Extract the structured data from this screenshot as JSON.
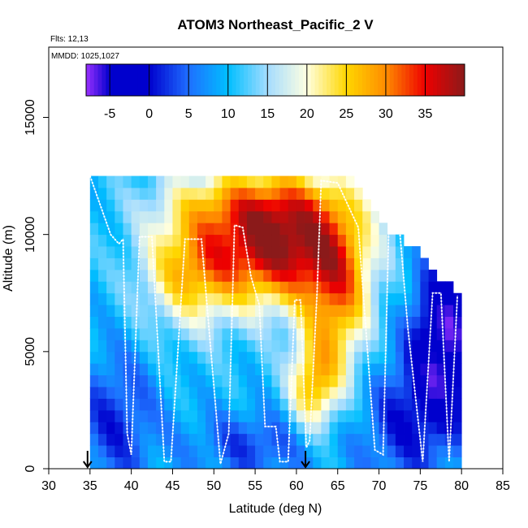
{
  "chart_data": {
    "type": "heatmap",
    "title": "ATOM3 Northeast_Pacific_2 V",
    "annotations": [
      "Flts: 12,13",
      "MMDD: 1025,1027"
    ],
    "xlabel": "Latitude (deg N)",
    "ylabel": "Altitude (m)",
    "xlim": [
      30,
      85
    ],
    "ylim": [
      0,
      18000
    ],
    "x_ticks": [
      30,
      35,
      40,
      45,
      50,
      55,
      60,
      65,
      70,
      75,
      80,
      85
    ],
    "y_ticks": [
      0,
      5000,
      10000,
      15000
    ],
    "colorbar": {
      "range": [
        -8,
        40
      ],
      "ticks": [
        -5,
        0,
        5,
        10,
        15,
        20,
        25,
        30,
        35
      ],
      "color_stops": [
        {
          "v": -8,
          "c": "#9b30ff"
        },
        {
          "v": -5,
          "c": "#0000cd"
        },
        {
          "v": 0,
          "c": "#0000cd"
        },
        {
          "v": 5,
          "c": "#1e6fff"
        },
        {
          "v": 10,
          "c": "#00bfff"
        },
        {
          "v": 15,
          "c": "#a4dcff"
        },
        {
          "v": 20,
          "c": "#ffffe0"
        },
        {
          "v": 25,
          "c": "#ffd700"
        },
        {
          "v": 30,
          "c": "#ff8c00"
        },
        {
          "v": 35,
          "c": "#ee0000"
        },
        {
          "v": 40,
          "c": "#8b1a1a"
        }
      ]
    },
    "grid": {
      "lat_start": 35,
      "lat_end": 80,
      "lat_step": 1,
      "alt_step": 500,
      "top_altitude_by_lat": [
        [
          35,
          12500
        ],
        [
          43,
          12500
        ],
        [
          50,
          12500
        ],
        [
          56,
          12500
        ],
        [
          60,
          12500
        ],
        [
          65,
          12500
        ],
        [
          67,
          12000
        ],
        [
          69,
          11000
        ],
        [
          71,
          10000
        ],
        [
          73,
          9500
        ],
        [
          75,
          9000
        ],
        [
          77,
          8000
        ],
        [
          79,
          7500
        ],
        [
          80,
          7500
        ]
      ],
      "wind_field": {
        "features": [
          {
            "lat": 58,
            "alt": 9500,
            "value": 38,
            "spread_lat": 9,
            "spread_alt": 2500
          },
          {
            "lat": 47,
            "alt": 8500,
            "value": 24,
            "spread_lat": 6,
            "spread_alt": 2500
          },
          {
            "lat": 65,
            "alt": 7000,
            "value": 26,
            "spread_lat": 4,
            "spread_alt": 3500
          },
          {
            "lat": 62,
            "alt": 3500,
            "value": 25,
            "spread_lat": 3,
            "spread_alt": 2000
          },
          {
            "lat": 55,
            "alt": 11500,
            "value": 20,
            "spread_lat": 12,
            "spread_alt": 1500
          },
          {
            "lat": 78,
            "alt": 5500,
            "value": -6,
            "spread_lat": 4,
            "spread_alt": 3500
          },
          {
            "lat": 38,
            "alt": 2000,
            "value": 2,
            "spread_lat": 5,
            "spread_alt": 3000
          },
          {
            "lat": 55,
            "alt": 1000,
            "value": 3,
            "spread_lat": 8,
            "spread_alt": 1500
          },
          {
            "lat": 73,
            "alt": 2000,
            "value": 2,
            "spread_lat": 6,
            "spread_alt": 3000
          }
        ],
        "background": 10
      }
    },
    "flight_track": [
      [
        35.0,
        12500
      ],
      [
        37.5,
        10000
      ],
      [
        38.0,
        9800
      ],
      [
        38.5,
        9600
      ],
      [
        39.0,
        9800
      ],
      [
        39.5,
        1500
      ],
      [
        40.0,
        600
      ],
      [
        41.0,
        9900
      ],
      [
        42.5,
        9900
      ],
      [
        44.0,
        300
      ],
      [
        44.8,
        300
      ],
      [
        46.5,
        9800
      ],
      [
        48.5,
        9800
      ],
      [
        50.8,
        200
      ],
      [
        51.8,
        1500
      ],
      [
        52.5,
        10400
      ],
      [
        53.5,
        10300
      ],
      [
        54.5,
        8200
      ],
      [
        55.5,
        7000
      ],
      [
        56.2,
        1800
      ],
      [
        57.5,
        1800
      ],
      [
        58.0,
        300
      ],
      [
        59.0,
        300
      ],
      [
        59.8,
        7200
      ],
      [
        60.5,
        7200
      ],
      [
        61.2,
        900
      ],
      [
        61.6,
        1200
      ],
      [
        62.5,
        7500
      ],
      [
        63.0,
        12300
      ],
      [
        65.0,
        12200
      ],
      [
        67.5,
        10300
      ],
      [
        69.5,
        800
      ],
      [
        70.5,
        600
      ],
      [
        71.2,
        10400
      ],
      [
        72.5,
        10200
      ],
      [
        73.5,
        6000
      ],
      [
        75.3,
        300
      ],
      [
        76.5,
        7500
      ],
      [
        77.5,
        7500
      ],
      [
        78.5,
        300
      ],
      [
        79.5,
        7400
      ]
    ],
    "markers_lat": [
      34.7,
      61.1
    ]
  }
}
